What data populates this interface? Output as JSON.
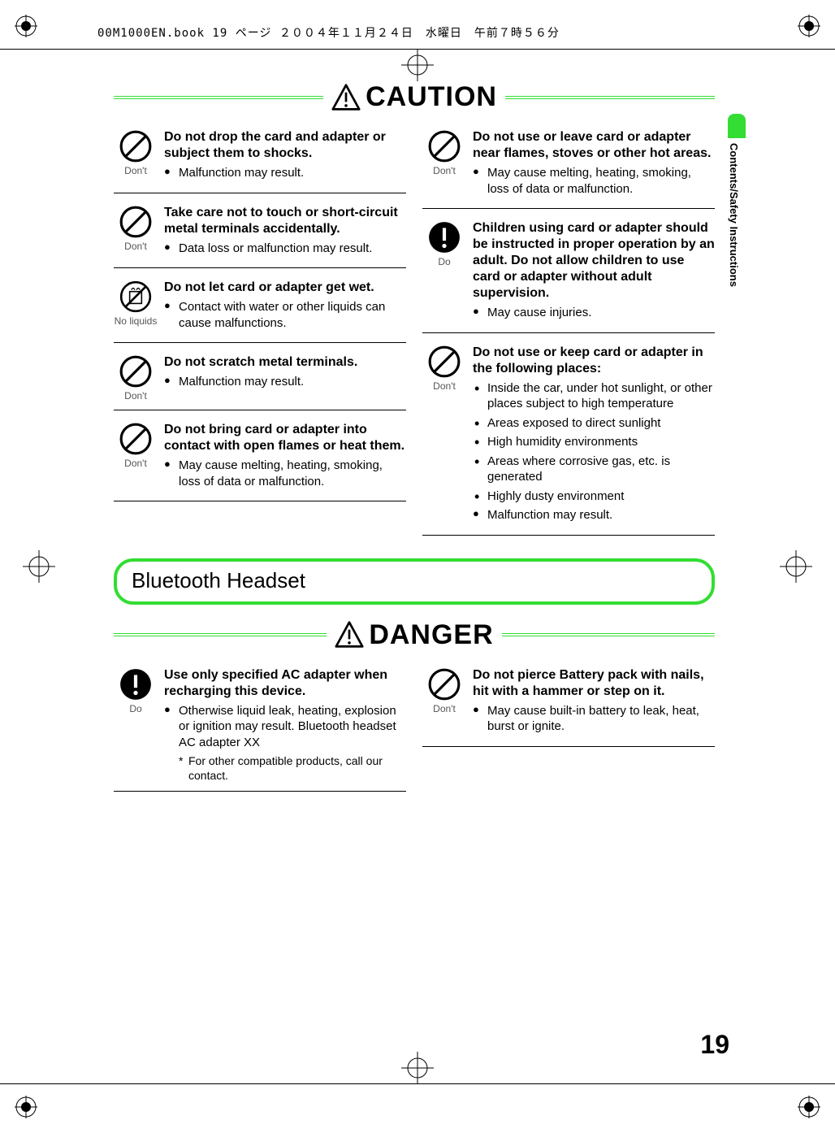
{
  "doc_header": "00M1000EN.book  19 ページ  ２００４年１１月２４日　水曜日　午前７時５６分",
  "page_number": "19",
  "side_tab": "Contents/Safety Instructions",
  "accent_color": "#33dd33",
  "sections": {
    "caution": {
      "title": "CAUTION",
      "left": [
        {
          "icon": "dont",
          "icon_label": "Don't",
          "heading": "Do not drop the card and adapter or subject them to shocks.",
          "bullets": [
            "Malfunction may result."
          ]
        },
        {
          "icon": "dont",
          "icon_label": "Don't",
          "heading": "Take care not to touch or short-circuit metal terminals accidentally.",
          "bullets": [
            "Data loss or malfunction may result."
          ]
        },
        {
          "icon": "noliquids",
          "icon_label": "No liquids",
          "heading": "Do not let card or adapter get wet.",
          "bullets": [
            "Contact with water or other liquids can cause malfunctions."
          ]
        },
        {
          "icon": "dont",
          "icon_label": "Don't",
          "heading": "Do not scratch metal terminals.",
          "bullets": [
            "Malfunction may result."
          ]
        },
        {
          "icon": "dont",
          "icon_label": "Don't",
          "heading": "Do not bring card or adapter into contact with open flames or heat them.",
          "bullets": [
            "May cause melting, heating, smoking, loss of data or malfunction."
          ]
        }
      ],
      "right": [
        {
          "icon": "dont",
          "icon_label": "Don't",
          "heading": "Do not use or leave card or adapter near flames, stoves or other hot areas.",
          "bullets": [
            "May cause melting, heating, smoking, loss of data or malfunction."
          ]
        },
        {
          "icon": "do",
          "icon_label": "Do",
          "heading": "Children using card or adapter should be instructed in proper operation by an adult. Do not allow children to use card or adapter without adult supervision.",
          "bullets": [
            "May cause injuries."
          ]
        },
        {
          "icon": "dont",
          "icon_label": "Don't",
          "heading": "Do not use or keep card or adapter in the following places:",
          "dots": [
            "Inside the car, under hot sunlight, or other places subject to high temperature",
            "Areas exposed to direct sunlight",
            "High humidity environments",
            "Areas where corrosive gas, etc. is generated",
            "Highly dusty environment"
          ],
          "bullets": [
            "Malfunction may result."
          ]
        }
      ]
    },
    "bluetooth": {
      "pill": "Bluetooth Headset"
    },
    "danger": {
      "title": "DANGER",
      "left": [
        {
          "icon": "do",
          "icon_label": "Do",
          "heading": "Use only specified AC adapter when recharging this device.",
          "bullets": [
            "Otherwise liquid leak, heating, explosion or ignition may result. Bluetooth headset AC adapter XX"
          ],
          "star": "For other compatible products, call our contact."
        }
      ],
      "right": [
        {
          "icon": "dont",
          "icon_label": "Don't",
          "heading": "Do not pierce Battery pack with nails, hit with a hammer or step on it.",
          "bullets": [
            "May cause built-in battery to leak, heat, burst or ignite."
          ]
        }
      ]
    }
  }
}
